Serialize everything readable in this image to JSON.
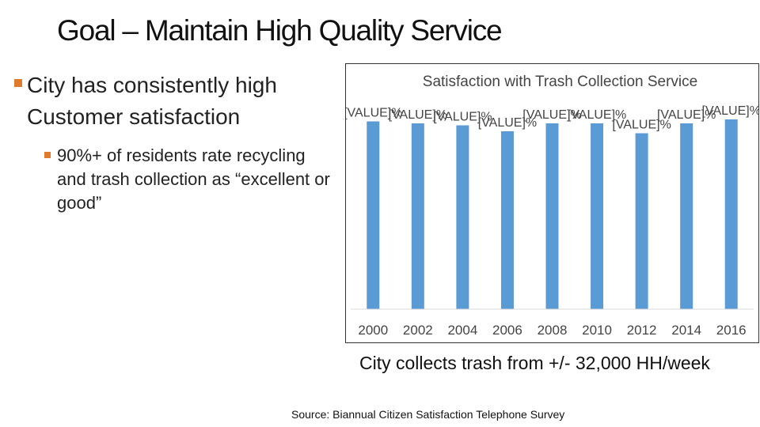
{
  "slide": {
    "title": "Goal – Maintain High Quality Service",
    "bullet1": "City has consistently high Customer satisfaction",
    "bullet2": "90%+ of residents rate recycling and trash collection as “excellent or good”",
    "caption": "City collects trash from +/- 32,000 HH/week",
    "source": "Source: Biannual Citizen Satisfaction Telephone Survey"
  },
  "colors": {
    "bar": "#5b9bd5",
    "bullet": "#e07b2e",
    "accent": "#e07b2e"
  },
  "chart_data": {
    "type": "bar",
    "title": "Satisfaction with Trash Collection Service",
    "categories": [
      "2000",
      "2002",
      "2004",
      "2006",
      "2008",
      "2010",
      "2012",
      "2014",
      "2016"
    ],
    "values": [
      95,
      94,
      93,
      90,
      94,
      94,
      89,
      94,
      96
    ],
    "data_labels": [
      "[VALUE]%",
      "[VALUE]%",
      "[VALUE]%",
      "[VALUE]%",
      "[VALUE]%",
      "[VALUE]%",
      "[VALUE]%",
      "[VALUE]%",
      "[VALUE]%"
    ],
    "ylim": [
      0,
      100
    ],
    "grid": false,
    "legend": "none"
  }
}
